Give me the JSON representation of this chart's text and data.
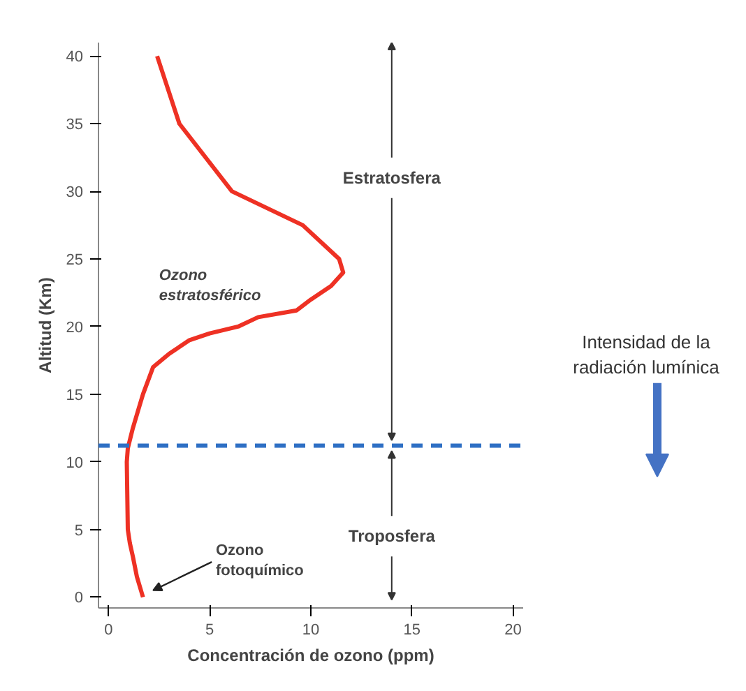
{
  "chart_data": {
    "type": "line",
    "xlabel": "Concentración de ozono (ppm)",
    "ylabel": "Altitud (Km)",
    "xlim": [
      -0.5,
      20.5
    ],
    "ylim": [
      -0.8,
      41
    ],
    "xticks": [
      0,
      5,
      10,
      15,
      20
    ],
    "yticks": [
      0,
      5,
      10,
      15,
      20,
      25,
      30,
      35,
      40
    ],
    "grid": false,
    "marker": "none",
    "line_style": "solid",
    "series": [
      {
        "color": "#ee3124",
        "x": [
          1.7,
          1.4,
          1.2,
          1.05,
          0.95,
          0.9,
          0.95,
          1.2,
          1.5,
          1.7,
          2.2,
          3.0,
          4.0,
          5.0,
          6.4,
          7.4,
          9.3,
          10.0,
          11.0,
          11.6,
          11.4,
          9.6,
          6.1,
          3.5,
          2.4
        ],
        "values": [
          0,
          1.5,
          3,
          4,
          5,
          10,
          11,
          12.5,
          14,
          15,
          17,
          18,
          19,
          19.5,
          20,
          20.7,
          21.2,
          22,
          23,
          24,
          25,
          27.5,
          30,
          35,
          40
        ]
      }
    ],
    "ref_lines": [
      {
        "axis": "y",
        "value": 11.2,
        "color": "#2e6fc4",
        "line_style": "dashed"
      }
    ],
    "annotations": [
      "Estratosfera",
      {
        "text": "Troposfera",
        "x": 14,
        "y": 11.2
      },
      "Ozono estratosférico",
      {
        "text": "Ozono fotoquímico",
        "x": 1.7,
        "y": 0
      },
      "Intensidad de la radiación lumínica"
    ]
  }
}
